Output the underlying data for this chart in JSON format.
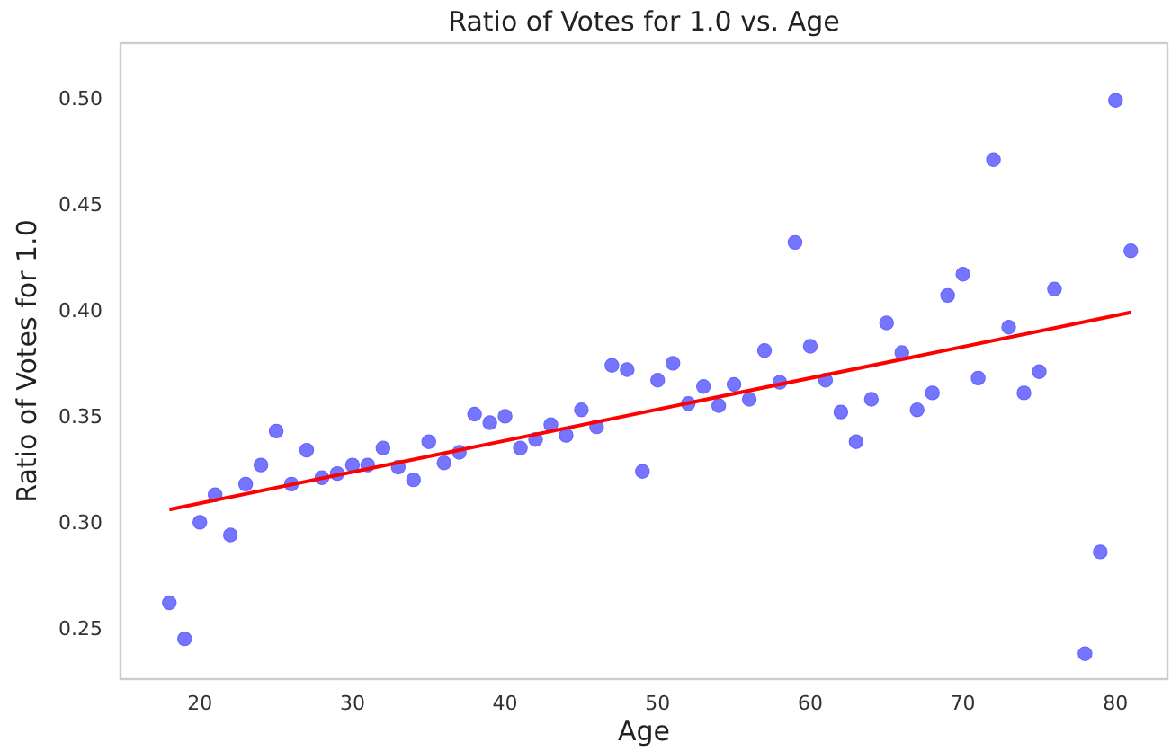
{
  "chart_data": {
    "type": "scatter",
    "title": "Ratio of Votes for 1.0 vs. Age",
    "xlabel": "Age",
    "ylabel": "Ratio of Votes for 1.0",
    "xlim": [
      14.8,
      83.4
    ],
    "ylim": [
      0.226,
      0.526
    ],
    "xticks": [
      20,
      30,
      40,
      50,
      60,
      70,
      80
    ],
    "yticks": [
      {
        "value": 0.25,
        "label": "0.25"
      },
      {
        "value": 0.3,
        "label": "0.30"
      },
      {
        "value": 0.35,
        "label": "0.35"
      },
      {
        "value": 0.4,
        "label": "0.40"
      },
      {
        "value": 0.45,
        "label": "0.45"
      },
      {
        "value": 0.5,
        "label": "0.50"
      }
    ],
    "grid": false,
    "series": [
      {
        "marker": "circle",
        "color": "#6666ff",
        "x": [
          18,
          19,
          20,
          21,
          22,
          23,
          24,
          25,
          26,
          27,
          28,
          29,
          30,
          31,
          32,
          33,
          34,
          35,
          36,
          37,
          38,
          39,
          40,
          41,
          42,
          43,
          44,
          45,
          46,
          47,
          48,
          49,
          50,
          51,
          52,
          53,
          54,
          55,
          56,
          57,
          58,
          59,
          60,
          61,
          62,
          63,
          64,
          65,
          66,
          67,
          68,
          69,
          70,
          71,
          72,
          73,
          74,
          75,
          76,
          78,
          79,
          80,
          81
        ],
        "values": [
          0.262,
          0.245,
          0.3,
          0.313,
          0.294,
          0.318,
          0.327,
          0.343,
          0.318,
          0.334,
          0.321,
          0.323,
          0.327,
          0.327,
          0.335,
          0.326,
          0.32,
          0.338,
          0.328,
          0.333,
          0.351,
          0.347,
          0.35,
          0.335,
          0.339,
          0.346,
          0.341,
          0.353,
          0.345,
          0.374,
          0.372,
          0.324,
          0.367,
          0.375,
          0.356,
          0.364,
          0.355,
          0.365,
          0.358,
          0.381,
          0.366,
          0.432,
          0.383,
          0.367,
          0.352,
          0.338,
          0.358,
          0.394,
          0.38,
          0.353,
          0.361,
          0.407,
          0.417,
          0.368,
          0.471,
          0.392,
          0.361,
          0.371,
          0.41,
          0.238,
          0.286,
          0.499,
          0.428
        ]
      },
      {
        "type": "line",
        "color": "#ff0000",
        "line_style": "solid",
        "x": [
          18,
          81
        ],
        "values": [
          0.306,
          0.399
        ]
      }
    ]
  }
}
